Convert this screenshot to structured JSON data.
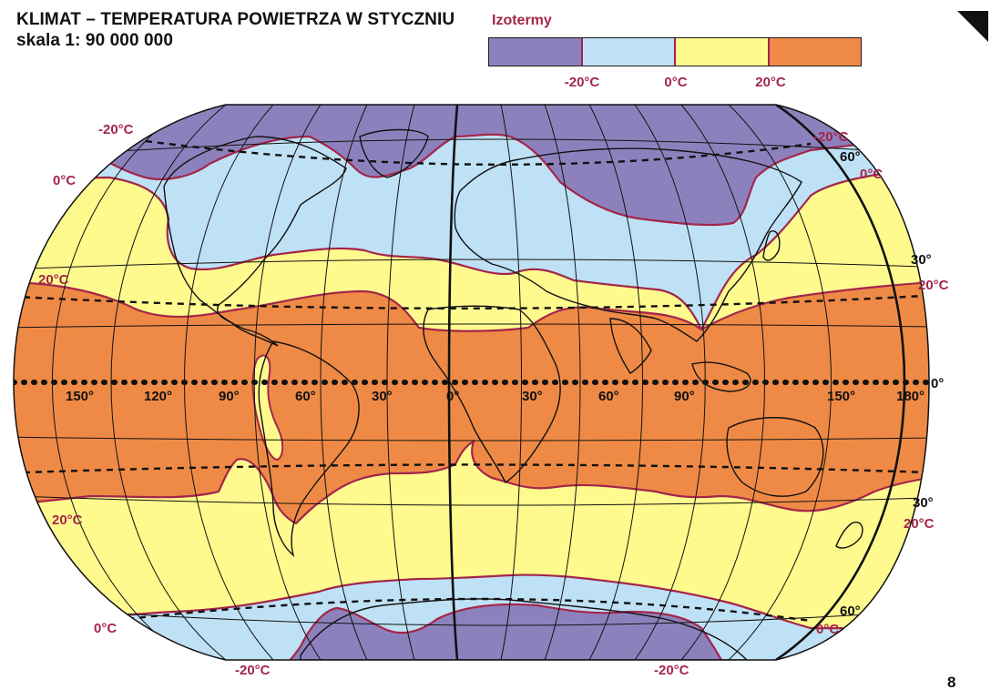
{
  "header": {
    "title_line1": "KLIMAT – TEMPERATURA POWIETRZA W STYCZNIU",
    "title_line2": "skala 1: 90 000 000"
  },
  "legend": {
    "title": "Izotermy",
    "colors": [
      "#8d81bd",
      "#bfe1f5",
      "#fffa8e",
      "#ef8a46"
    ],
    "ticks": [
      "-20°C",
      "0°C",
      "20°C"
    ]
  },
  "isotherm_color": "#a3264a",
  "map": {
    "longitude_labels": [
      "150°",
      "120°",
      "90°",
      "60°",
      "30°",
      "0°",
      "30°",
      "60°",
      "90°",
      "150°",
      "180°"
    ],
    "latitude_labels": {
      "north_60": "60°",
      "north_30": "30°",
      "equator": "0°",
      "south_30": "30°",
      "south_60": "60°"
    },
    "isotherm_labels": {
      "nw_minus20": "-20°C",
      "ne_minus20": "-20°C",
      "nw_zero": "0°C",
      "ne_zero": "0°C",
      "w_twenty_north": "20°C",
      "e_twenty_north": "20°C",
      "w_twenty_south": "20°C",
      "e_twenty_south": "20°C",
      "sw_zero": "0°C",
      "se_zero": "0°C",
      "sw_minus20": "-20°C",
      "se_minus20": "-20°C"
    }
  },
  "page_number": "8"
}
